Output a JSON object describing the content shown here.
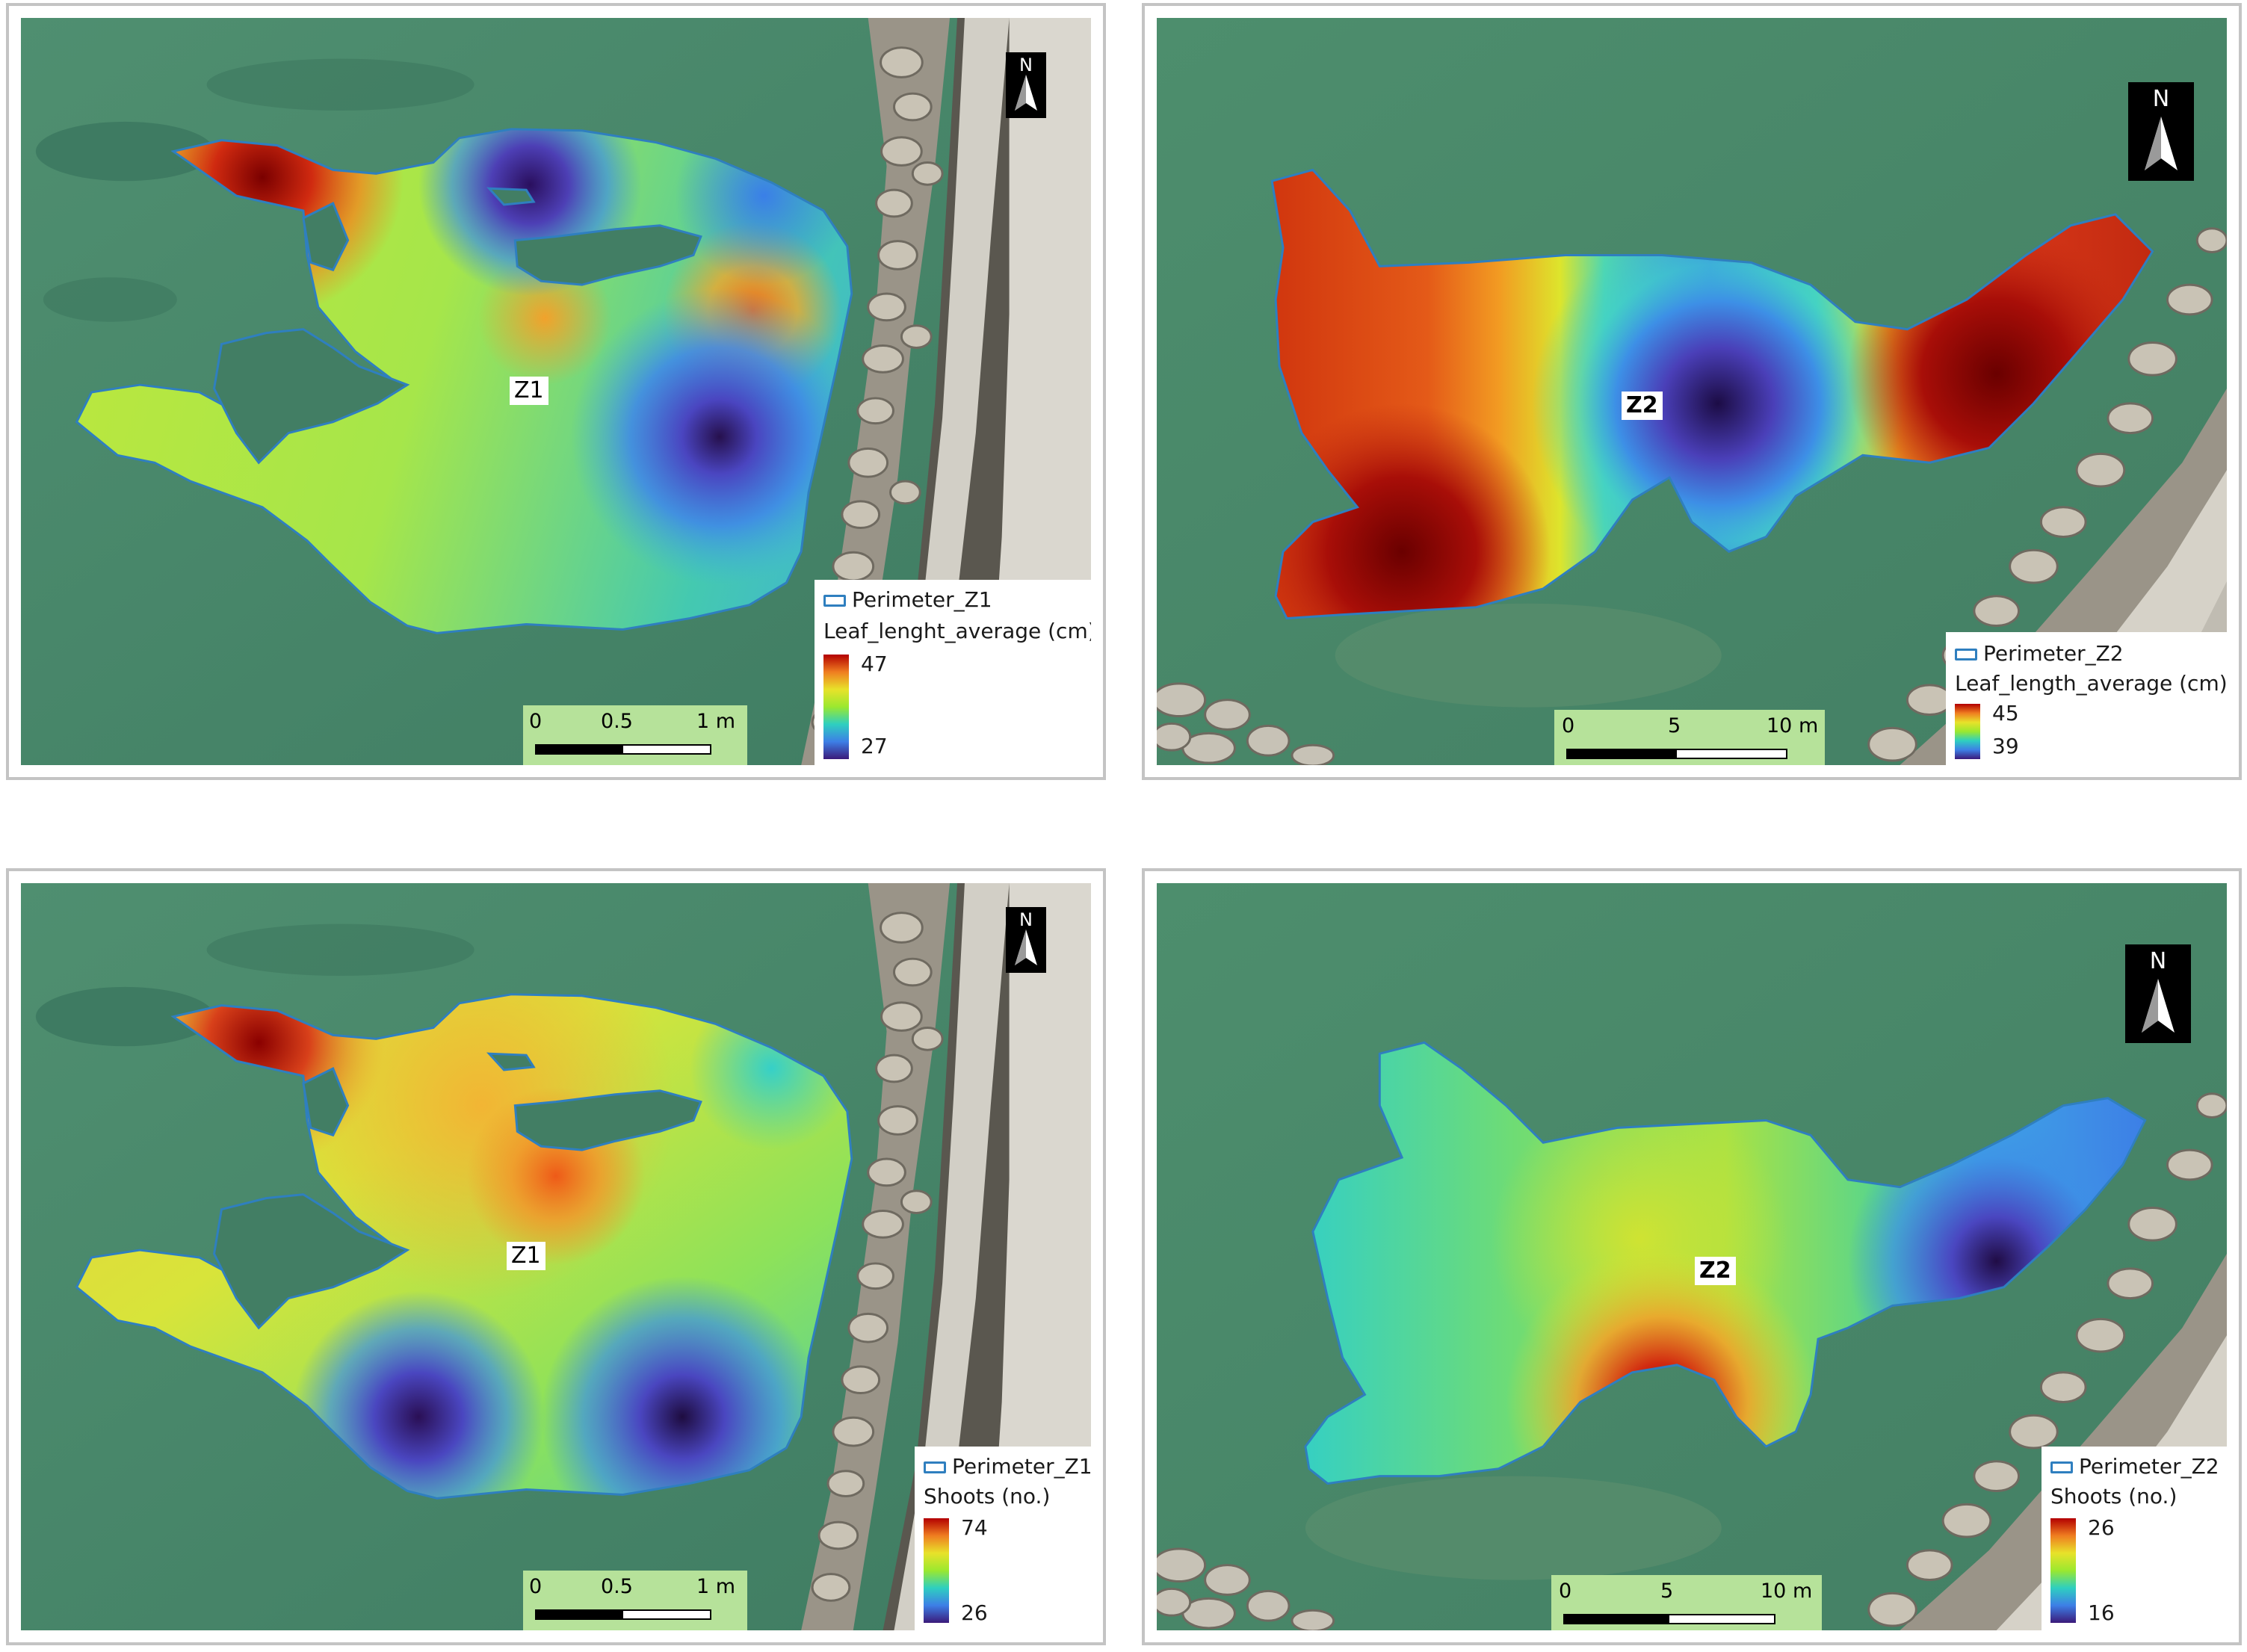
{
  "colors": {
    "water": "#4a8a6a",
    "frame_border": "#c4c4c4",
    "perimeter_stroke": "#2f7fbf",
    "scalebar_bg": "#b6e29a",
    "ramp": [
      "#b30000",
      "#ef7d20",
      "#e8e22a",
      "#9be82f",
      "#2ecfc0",
      "#3d7fe6",
      "#3b1a7a"
    ]
  },
  "panels": [
    {
      "zone_label": "Z1",
      "north_label": "N",
      "legend": {
        "perimeter_label": "Perimeter_Z1",
        "variable_title": "Leaf_lenght_average (cm)",
        "max": "47",
        "min": "27"
      },
      "scale": {
        "ticks": [
          "0",
          "0.5",
          "1 m"
        ]
      }
    },
    {
      "zone_label": "Z2",
      "north_label": "N",
      "legend": {
        "perimeter_label": "Perimeter_Z2",
        "variable_title": "Leaf_length_average (cm)",
        "max": "45",
        "min": "39"
      },
      "scale": {
        "ticks": [
          "0",
          "5",
          "10 m"
        ]
      }
    },
    {
      "zone_label": "Z1",
      "north_label": "N",
      "legend": {
        "perimeter_label": "Perimeter_Z1",
        "variable_title": "Shoots (no.)",
        "max": "74",
        "min": "26"
      },
      "scale": {
        "ticks": [
          "0",
          "0.5",
          "1 m"
        ]
      }
    },
    {
      "zone_label": "Z2",
      "north_label": "N",
      "legend": {
        "perimeter_label": "Perimeter_Z2",
        "variable_title": "Shoots (no.)",
        "max": "26",
        "min": "16"
      },
      "scale": {
        "ticks": [
          "0",
          "5",
          "10 m"
        ]
      }
    }
  ]
}
